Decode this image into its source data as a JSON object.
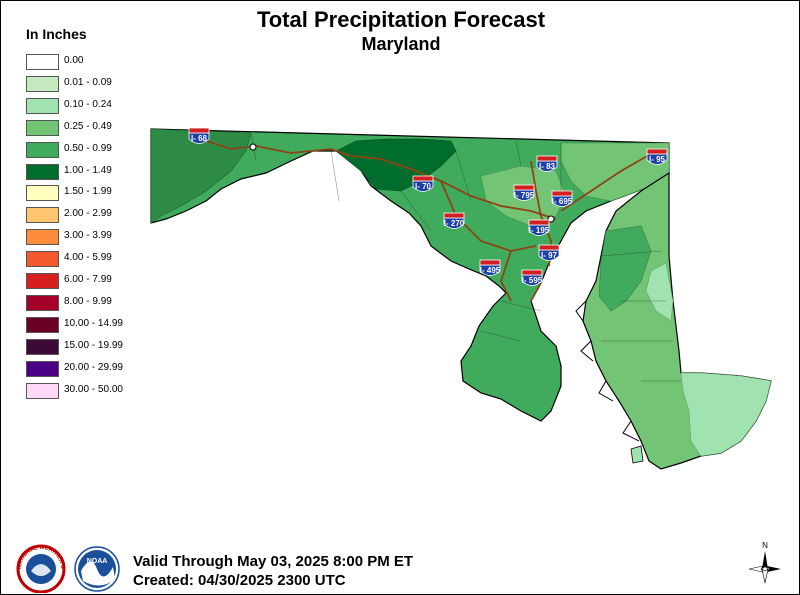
{
  "header": {
    "title": "Total Precipitation Forecast",
    "subtitle": "Maryland"
  },
  "legend": {
    "title": "In Inches",
    "items": [
      {
        "label": "0.00",
        "color": "#ffffff"
      },
      {
        "label": "0.01 - 0.09",
        "color": "#c7e9c0"
      },
      {
        "label": "0.10 - 0.24",
        "color": "#a1e3b0"
      },
      {
        "label": "0.25 - 0.49",
        "color": "#74c476"
      },
      {
        "label": "0.50 - 0.99",
        "color": "#41ab5d"
      },
      {
        "label": "1.00 - 1.49",
        "color": "#006d2c"
      },
      {
        "label": "1.50 - 1.99",
        "color": "#ffffbf"
      },
      {
        "label": "2.00 - 2.99",
        "color": "#fdc66e"
      },
      {
        "label": "3.00 - 3.99",
        "color": "#fd8d3c"
      },
      {
        "label": "4.00 - 5.99",
        "color": "#f4592e"
      },
      {
        "label": "6.00 - 7.99",
        "color": "#d62020"
      },
      {
        "label": "8.00 - 9.99",
        "color": "#a5002a"
      },
      {
        "label": "10.00 - 14.99",
        "color": "#6b0026"
      },
      {
        "label": "15.00 - 19.99",
        "color": "#3d0a35"
      },
      {
        "label": "20.00 - 29.99",
        "color": "#4b0085"
      },
      {
        "label": "30.00 - 50.00",
        "color": "#ffd9f7"
      }
    ]
  },
  "highways": [
    {
      "label": "I- 68"
    },
    {
      "label": "I- 70"
    },
    {
      "label": "I- 270"
    },
    {
      "label": "I- 795"
    },
    {
      "label": "I- 83"
    },
    {
      "label": "I- 695"
    },
    {
      "label": "I- 95"
    },
    {
      "label": "I- 195"
    },
    {
      "label": "I- 97"
    },
    {
      "label": "I- 495"
    },
    {
      "label": "I- 595"
    }
  ],
  "footer": {
    "valid": "Valid Through May 03, 2025 8:00 PM ET",
    "created": "Created: 04/30/2025 2300 UTC"
  },
  "logos": {
    "nws": "NATIONAL WEATHER SERVICE",
    "noaa": "NOAA"
  },
  "compass": {
    "north": "N"
  }
}
